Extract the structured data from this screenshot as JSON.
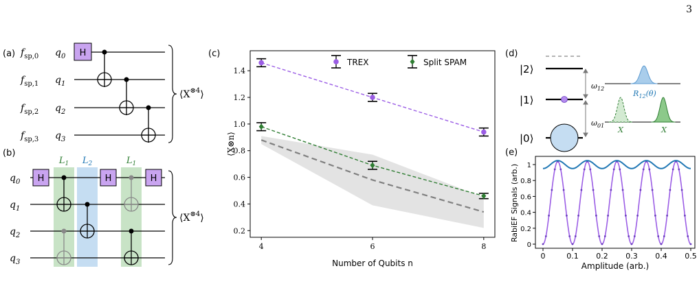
{
  "page": {
    "number": "3"
  },
  "panel_a": {
    "tag": "(a)",
    "rows": [
      {
        "f": "f",
        "fsub": "sp,0",
        "q": "q",
        "qsub": "0"
      },
      {
        "f": "f",
        "fsub": "sp,1",
        "q": "q",
        "qsub": "1"
      },
      {
        "f": "f",
        "fsub": "sp,2",
        "q": "q",
        "qsub": "2"
      },
      {
        "f": "f",
        "fsub": "sp,3",
        "q": "q",
        "qsub": "3"
      }
    ],
    "gate_h": "H",
    "observable": "⟨X",
    "observable_sup": "⊗4",
    "observable_close": "⟩"
  },
  "panel_b": {
    "tag": "(b)",
    "rows": [
      {
        "q": "q",
        "qsub": "0"
      },
      {
        "q": "q",
        "qsub": "1"
      },
      {
        "q": "q",
        "qsub": "2"
      },
      {
        "q": "q",
        "qsub": "3"
      }
    ],
    "layer1": {
      "name": "L",
      "sub": "1"
    },
    "layer2": {
      "name": "L",
      "sub": "2"
    },
    "gate_h": "H",
    "observable": "⟨X",
    "observable_sup": "⊗4",
    "observable_close": "⟩",
    "colors": {
      "layer1": "#c8e3c6",
      "layer2": "#c5ddf2",
      "gate": "#c9a4f0"
    }
  },
  "panel_c": {
    "tag": "(c)",
    "chart_data": {
      "type": "line",
      "xlabel": "Number of Qubits n",
      "ylabel": "⟨X⊗n⟩",
      "xlim": [
        3.8,
        8.2
      ],
      "ylim": [
        0.15,
        1.55
      ],
      "xticks": [
        "4",
        "6",
        "8"
      ],
      "xtick_values": [
        4,
        6,
        8
      ],
      "yticks": [
        "0.2",
        "0.4",
        "0.6",
        "0.8",
        "1.0",
        "1.2",
        "1.4"
      ],
      "ytick_values": [
        0.2,
        0.4,
        0.6,
        0.8,
        1.0,
        1.2,
        1.4
      ],
      "legend_position": "top-right",
      "series": [
        {
          "name": "TREX",
          "color": "#9b5de5",
          "x": [
            4,
            6,
            8
          ],
          "y": [
            1.46,
            1.2,
            0.94
          ],
          "err": [
            0.03,
            0.03,
            0.03
          ]
        },
        {
          "name": "Split SPAM",
          "color": "#2e7d32",
          "x": [
            4,
            6,
            8
          ],
          "y": [
            0.98,
            0.69,
            0.46
          ],
          "err": [
            0.03,
            0.03,
            0.02
          ]
        }
      ],
      "unmitigated": {
        "color": "#808080",
        "x": [
          4,
          6,
          8
        ],
        "y": [
          0.88,
          0.58,
          0.34
        ],
        "band_low": [
          0.85,
          0.39,
          0.22
        ],
        "band_high": [
          0.91,
          0.77,
          0.45
        ]
      }
    }
  },
  "panel_d": {
    "tag": "(d)",
    "levels": [
      "|2⟩",
      "|1⟩",
      "|0⟩"
    ],
    "omega12": "ω",
    "omega12_sub": "12",
    "omega01": "ω",
    "omega01_sub": "01",
    "r12": "R",
    "r12_sub": "12",
    "r12_arg": "(θ)",
    "x_left": "X",
    "x_right": "X",
    "colors": {
      "blue": "#a9cdeb",
      "green": "#8cc98a"
    }
  },
  "panel_e": {
    "tag": "(e)",
    "chart_data": {
      "type": "line",
      "xlabel": "Amplitude (arb.)",
      "ylabel": "RabiEF Signals (arb.)",
      "xlim": [
        0,
        0.5
      ],
      "ylim": [
        -0.03,
        1.08
      ],
      "xticks": [
        "0",
        "0.1",
        "0.2",
        "0.3",
        "0.4",
        "0.5"
      ],
      "xtick_values": [
        0,
        0.1,
        0.2,
        0.3,
        0.4,
        0.5
      ],
      "yticks": [
        "0",
        "0.2",
        "0.4",
        "0.6",
        "0.8",
        "1"
      ],
      "ytick_values": [
        0,
        0.2,
        0.4,
        0.6,
        0.8,
        1
      ],
      "series": [
        {
          "name": "",
          "color": "#9b5de5",
          "kind": "cos",
          "period": 0.1,
          "peak": 0.05,
          "amp_min": 0,
          "amp_max": 1.04
        },
        {
          "name": "",
          "color": "#1f77b4",
          "kind": "cos",
          "period": 0.1,
          "peak": 0.05,
          "amp_min": 0.95,
          "amp_max": 1.05
        }
      ]
    }
  }
}
